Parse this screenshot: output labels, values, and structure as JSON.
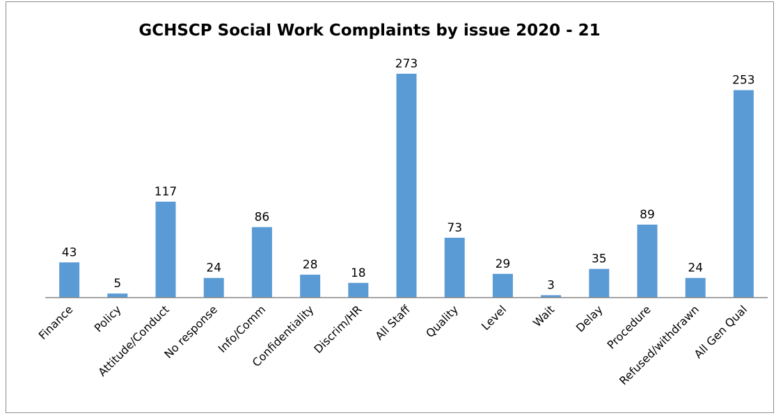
{
  "chart_data": {
    "type": "bar",
    "title": "GCHSCP Social Work Complaints by issue 2020 - 21",
    "categories": [
      "Finance",
      "Policy",
      "Attitude/Conduct",
      "No response",
      "Info/Comm",
      "Confidentiality",
      "Discrim/HR",
      "All Staff",
      "Quality",
      "Level",
      "Wait",
      "Delay",
      "Procedure",
      "Refused/withdrawn",
      "All Gen Qual"
    ],
    "values": [
      43,
      5,
      117,
      24,
      86,
      28,
      18,
      273,
      73,
      29,
      3,
      35,
      89,
      24,
      253
    ],
    "data_labels": [
      "43",
      "5",
      "117",
      "24",
      "86",
      "28",
      "18",
      "273",
      "73",
      "29",
      "3",
      "35",
      "89",
      "24",
      "253"
    ],
    "xlabel": "",
    "ylabel": "",
    "ylim": [
      0,
      273
    ],
    "grid": false,
    "legend": "none",
    "bar_color": "#5b9bd5",
    "axis_color": "#868686"
  }
}
